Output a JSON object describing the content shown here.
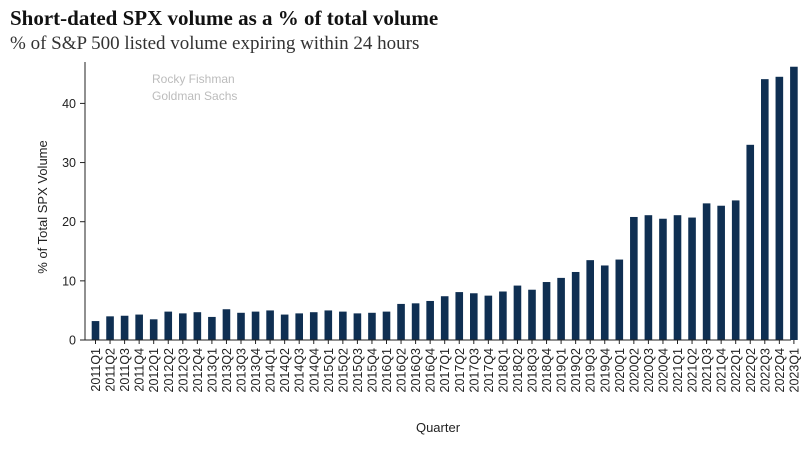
{
  "title": "Short-dated SPX volume as a % of total volume",
  "subtitle": "% of S&P 500 listed volume expiring within 24 hours",
  "watermark": [
    "Rocky Fishman",
    "Goldman Sachs"
  ],
  "colors": {
    "bar": "#0f2f52",
    "axis": "#222222"
  },
  "chart_data": {
    "type": "bar",
    "xlabel": "Quarter",
    "ylabel": "% of Total SPX Volume",
    "ylim": [
      0,
      47
    ],
    "yticks": [
      0,
      10,
      20,
      30,
      40
    ],
    "grid": false,
    "legend": "none",
    "categories": [
      "2011Q1",
      "2011Q2",
      "2011Q3",
      "2011Q4",
      "2012Q1",
      "2012Q2",
      "2012Q3",
      "2012Q4",
      "2013Q1",
      "2013Q2",
      "2013Q3",
      "2013Q4",
      "2014Q1",
      "2014Q2",
      "2014Q3",
      "2014Q4",
      "2015Q1",
      "2015Q2",
      "2015Q3",
      "2015Q4",
      "2016Q1",
      "2016Q2",
      "2016Q3",
      "2016Q4",
      "2017Q1",
      "2017Q2",
      "2017Q3",
      "2017Q4",
      "2018Q1",
      "2018Q2",
      "2018Q3",
      "2018Q4",
      "2019Q1",
      "2019Q2",
      "2019Q3",
      "2019Q4",
      "2020Q1",
      "2020Q2",
      "2020Q3",
      "2020Q4",
      "2021Q1",
      "2021Q2",
      "2021Q3",
      "2021Q4",
      "2022Q1",
      "2022Q2",
      "2022Q3",
      "2022Q4",
      "2023Q1"
    ],
    "values": [
      3.2,
      4.0,
      4.1,
      4.3,
      3.5,
      4.8,
      4.5,
      4.7,
      3.9,
      5.2,
      4.6,
      4.8,
      5.0,
      4.3,
      4.5,
      4.7,
      5.0,
      4.8,
      4.5,
      4.6,
      4.8,
      6.1,
      6.2,
      6.6,
      7.4,
      8.1,
      7.9,
      7.5,
      8.2,
      9.2,
      8.5,
      9.8,
      10.5,
      11.5,
      13.5,
      12.6,
      13.6,
      20.8,
      21.1,
      20.5,
      21.1,
      20.7,
      23.1,
      22.7,
      23.6,
      33.0,
      44.1,
      44.5,
      46.2
    ]
  }
}
